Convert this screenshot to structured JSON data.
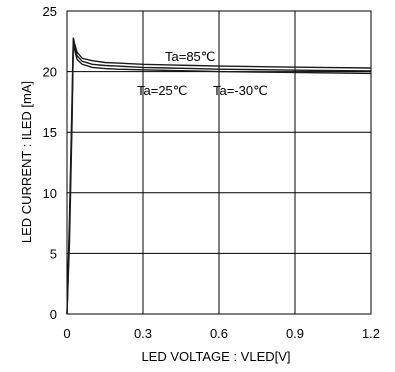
{
  "chart_data": {
    "type": "line",
    "title": "",
    "xlabel": "LED VOLTAGE : VLED[V]",
    "ylabel": "LED CURRENT : ILED [mA]",
    "xlim": [
      0,
      1.2
    ],
    "ylim": [
      0,
      25
    ],
    "x_ticks": [
      "0",
      "0.3",
      "0.6",
      "0.9",
      "1.2"
    ],
    "y_ticks": [
      "0",
      "5",
      "10",
      "15",
      "20",
      "25"
    ],
    "grid": true,
    "annotations": [
      "Ta=85℃",
      "Ta=25℃",
      "Ta=-30℃"
    ],
    "series": [
      {
        "name": "Ta=85℃",
        "x": [
          0,
          0.01,
          0.02,
          0.025,
          0.03,
          0.04,
          0.06,
          0.1,
          0.15,
          0.2,
          0.3,
          0.4,
          0.5,
          0.6,
          0.8,
          1.0,
          1.2
        ],
        "y": [
          0,
          8,
          18,
          22.8,
          22.3,
          21.6,
          21.1,
          20.9,
          20.75,
          20.7,
          20.6,
          20.55,
          20.5,
          20.45,
          20.4,
          20.35,
          20.3
        ]
      },
      {
        "name": "Ta=25℃",
        "x": [
          0,
          0.01,
          0.02,
          0.025,
          0.03,
          0.04,
          0.06,
          0.1,
          0.15,
          0.2,
          0.3,
          0.4,
          0.5,
          0.6,
          0.8,
          1.0,
          1.2
        ],
        "y": [
          0,
          7,
          17,
          22.5,
          22.0,
          21.3,
          20.85,
          20.6,
          20.5,
          20.45,
          20.35,
          20.3,
          20.25,
          20.2,
          20.15,
          20.1,
          20.05
        ]
      },
      {
        "name": "Ta=-30℃",
        "x": [
          0,
          0.01,
          0.02,
          0.025,
          0.03,
          0.04,
          0.06,
          0.1,
          0.15,
          0.2,
          0.3,
          0.4,
          0.5,
          0.6,
          0.8,
          1.0,
          1.2
        ],
        "y": [
          0,
          6,
          16,
          22.2,
          21.8,
          21.0,
          20.6,
          20.35,
          20.25,
          20.2,
          20.15,
          20.1,
          20.05,
          20.0,
          19.95,
          19.9,
          19.85
        ]
      }
    ],
    "colors": {
      "line": "#1a1a1a",
      "grid": "#000000"
    }
  }
}
